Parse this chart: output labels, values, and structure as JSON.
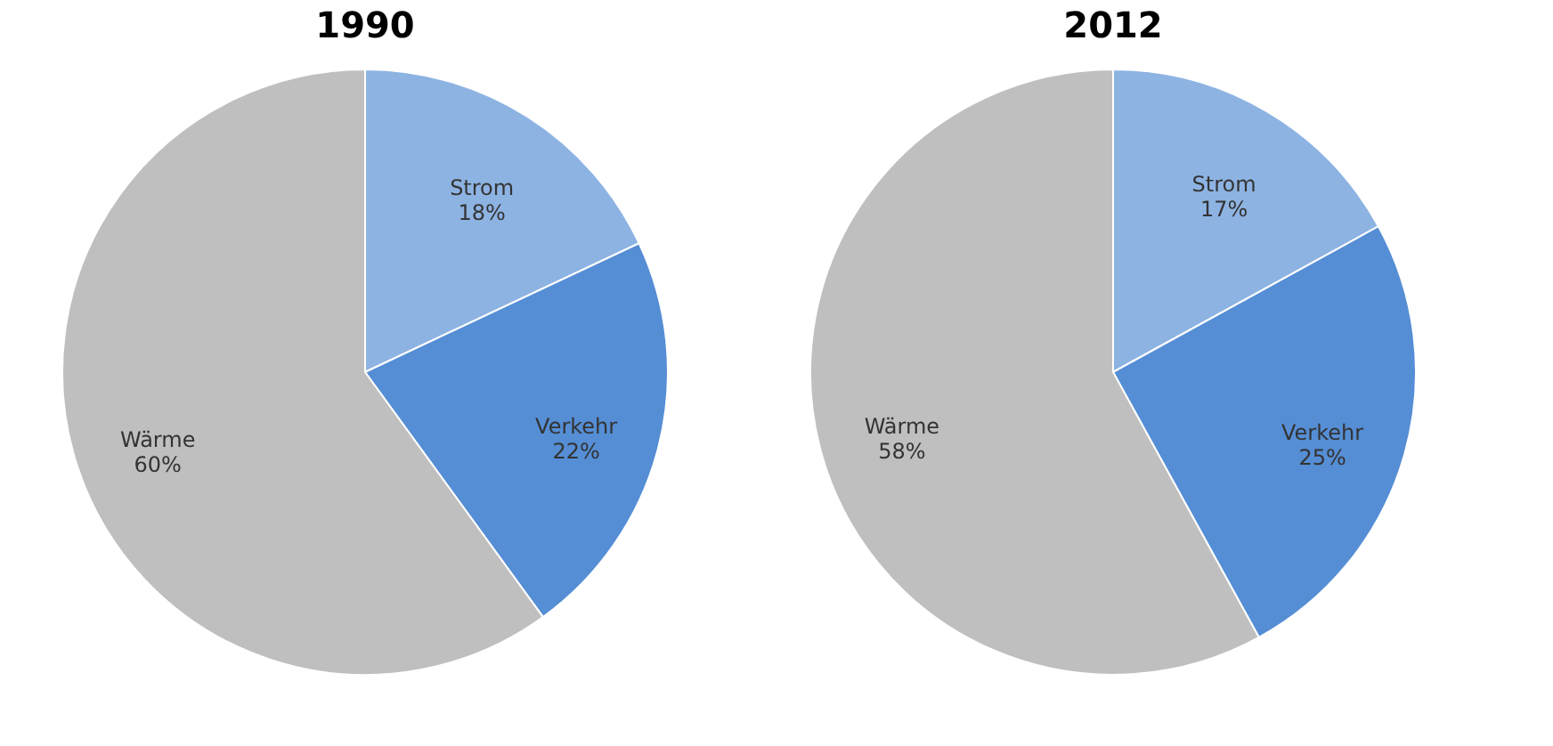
{
  "chart_data": [
    {
      "type": "pie",
      "title": "1990",
      "categories": [
        "Strom",
        "Verkehr",
        "Wärme"
      ],
      "values": [
        18,
        22,
        60
      ],
      "colors": [
        "#8db3e2",
        "#558ed5",
        "#bfbfbf"
      ],
      "value_labels": [
        "18%",
        "22%",
        "60%"
      ]
    },
    {
      "type": "pie",
      "title": "2012",
      "categories": [
        "Strom",
        "Verkehr",
        "Wärme"
      ],
      "values": [
        17,
        25,
        58
      ],
      "colors": [
        "#8db3e2",
        "#558ed5",
        "#bfbfbf"
      ],
      "value_labels": [
        "17%",
        "25%",
        "58%"
      ]
    }
  ]
}
